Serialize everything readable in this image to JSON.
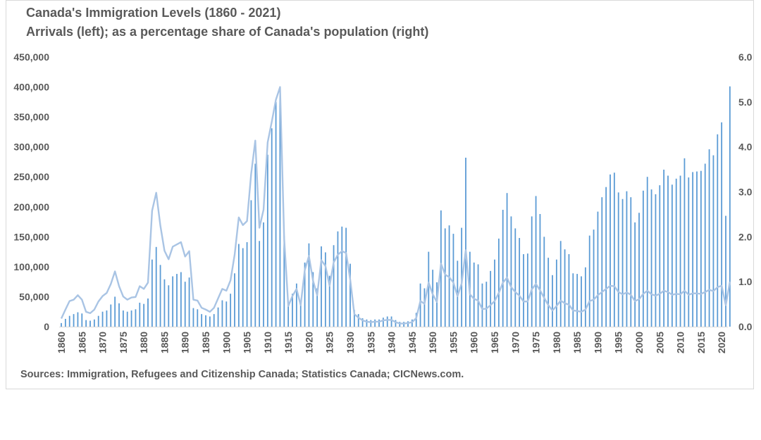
{
  "chart_data": {
    "type": "bar+line",
    "title": "Canada's Immigration Levels (1860 - 2021)",
    "subtitle": "Arrivals (left); as a percentage share of Canada's population (right)",
    "source": "Sources: Immigration, Refugees and Citizenship Canada;  Statistics Canada;  CICNews.com.",
    "x_start": 1860,
    "x_end": 2021,
    "y_left_lim": [
      0,
      450000
    ],
    "y_left_ticks": [
      "0",
      "50,000",
      "100,000",
      "150,000",
      "200,000",
      "250,000",
      "300,000",
      "350,000",
      "400,000",
      "450,000"
    ],
    "y_right_lim": [
      0,
      6
    ],
    "y_right_ticks": [
      "0.0",
      "1.0",
      "2.0",
      "3.0",
      "4.0",
      "5.0",
      "6.0"
    ],
    "x_tick_labels": [
      "1860",
      "1865",
      "1870",
      "1875",
      "1880",
      "1885",
      "1890",
      "1895",
      "1900",
      "1905",
      "1910",
      "1915",
      "1920",
      "1925",
      "1930",
      "1935",
      "1940",
      "1945",
      "1950",
      "1955",
      "1960",
      "1965",
      "1970",
      "1975",
      "1980",
      "1985",
      "1990",
      "1995",
      "2000",
      "2005",
      "2010",
      "2015",
      "2020"
    ],
    "grid": false,
    "colors": {
      "bars": "#5b9bd5",
      "line": "#a9c4e4",
      "text": "#595959",
      "axis": "#d9d9d9"
    },
    "series": [
      {
        "name": "Arrivals",
        "axis": "left",
        "kind": "bar",
        "values": [
          6000,
          13000,
          18000,
          21000,
          24000,
          22000,
          11000,
          10000,
          12000,
          18000,
          25000,
          27000,
          37000,
          50000,
          39000,
          27000,
          25000,
          27000,
          29000,
          40000,
          38000,
          47000,
          112000,
          133000,
          103000,
          79000,
          69000,
          84000,
          88000,
          91000,
          75000,
          82000,
          31000,
          29000,
          21000,
          19000,
          17000,
          21000,
          32000,
          44000,
          42000,
          55000,
          89000,
          138000,
          131000,
          141000,
          211000,
          272000,
          143000,
          174000,
          287000,
          331000,
          375000,
          401000,
          151000,
          37000,
          55000,
          72000,
          41000,
          107000,
          139000,
          91000,
          64000,
          134000,
          124000,
          85000,
          136000,
          159000,
          167000,
          165000,
          105000,
          28000,
          21000,
          14000,
          12000,
          11000,
          12000,
          12000,
          15000,
          17000,
          17000,
          11000,
          8000,
          8000,
          9000,
          12000,
          23000,
          72000,
          64000,
          125000,
          95000,
          74000,
          194000,
          164000,
          169000,
          155000,
          110000,
          165000,
          282000,
          125000,
          107000,
          104000,
          72000,
          75000,
          93000,
          112000,
          147000,
          195000,
          223000,
          184000,
          164000,
          148000,
          121000,
          122000,
          184000,
          218000,
          188000,
          150000,
          115000,
          86000,
          112000,
          143000,
          129000,
          121000,
          89000,
          88000,
          84000,
          99000,
          152000,
          162000,
          192000,
          216000,
          233000,
          254000,
          257000,
          224000,
          213000,
          226000,
          216000,
          174000,
          190000,
          227000,
          250000,
          229000,
          221000,
          236000,
          262000,
          252000,
          237000,
          247000,
          252000,
          281000,
          249000,
          258000,
          259000,
          260000,
          272000,
          296000,
          286000,
          321000,
          341000,
          185000,
          401000
        ]
      },
      {
        "name": "Percentage share",
        "axis": "right",
        "kind": "line",
        "values": [
          0.18,
          0.38,
          0.57,
          0.6,
          0.7,
          0.6,
          0.33,
          0.3,
          0.38,
          0.56,
          0.68,
          0.75,
          0.95,
          1.23,
          0.9,
          0.67,
          0.6,
          0.65,
          0.66,
          0.9,
          0.84,
          0.98,
          2.58,
          2.98,
          2.25,
          1.69,
          1.5,
          1.78,
          1.83,
          1.88,
          1.56,
          1.68,
          0.6,
          0.58,
          0.42,
          0.38,
          0.33,
          0.42,
          0.63,
          0.84,
          0.8,
          1.03,
          1.6,
          2.43,
          2.26,
          2.35,
          3.4,
          4.14,
          2.2,
          2.6,
          4.1,
          4.56,
          5.05,
          5.33,
          1.96,
          0.46,
          0.68,
          0.84,
          0.48,
          1.26,
          1.57,
          1.02,
          0.7,
          1.48,
          1.35,
          0.91,
          1.43,
          1.6,
          1.68,
          1.64,
          1.05,
          0.28,
          0.2,
          0.14,
          0.11,
          0.1,
          0.11,
          0.11,
          0.14,
          0.15,
          0.15,
          0.1,
          0.07,
          0.07,
          0.08,
          0.1,
          0.19,
          0.57,
          0.51,
          0.98,
          0.72,
          0.55,
          1.4,
          1.16,
          1.1,
          0.98,
          0.68,
          0.96,
          1.7,
          0.72,
          0.62,
          0.58,
          0.39,
          0.4,
          0.48,
          0.57,
          0.75,
          0.98,
          1.09,
          0.88,
          0.77,
          0.69,
          0.56,
          0.56,
          0.83,
          0.95,
          0.81,
          0.64,
          0.48,
          0.36,
          0.46,
          0.58,
          0.52,
          0.49,
          0.36,
          0.35,
          0.33,
          0.38,
          0.57,
          0.6,
          0.7,
          0.77,
          0.84,
          0.91,
          0.9,
          0.77,
          0.72,
          0.76,
          0.71,
          0.57,
          0.61,
          0.73,
          0.8,
          0.72,
          0.69,
          0.73,
          0.8,
          0.77,
          0.71,
          0.73,
          0.72,
          0.8,
          0.71,
          0.74,
          0.74,
          0.73,
          0.77,
          0.82,
          0.79,
          0.88,
          0.91,
          0.48,
          1.0
        ]
      }
    ]
  }
}
